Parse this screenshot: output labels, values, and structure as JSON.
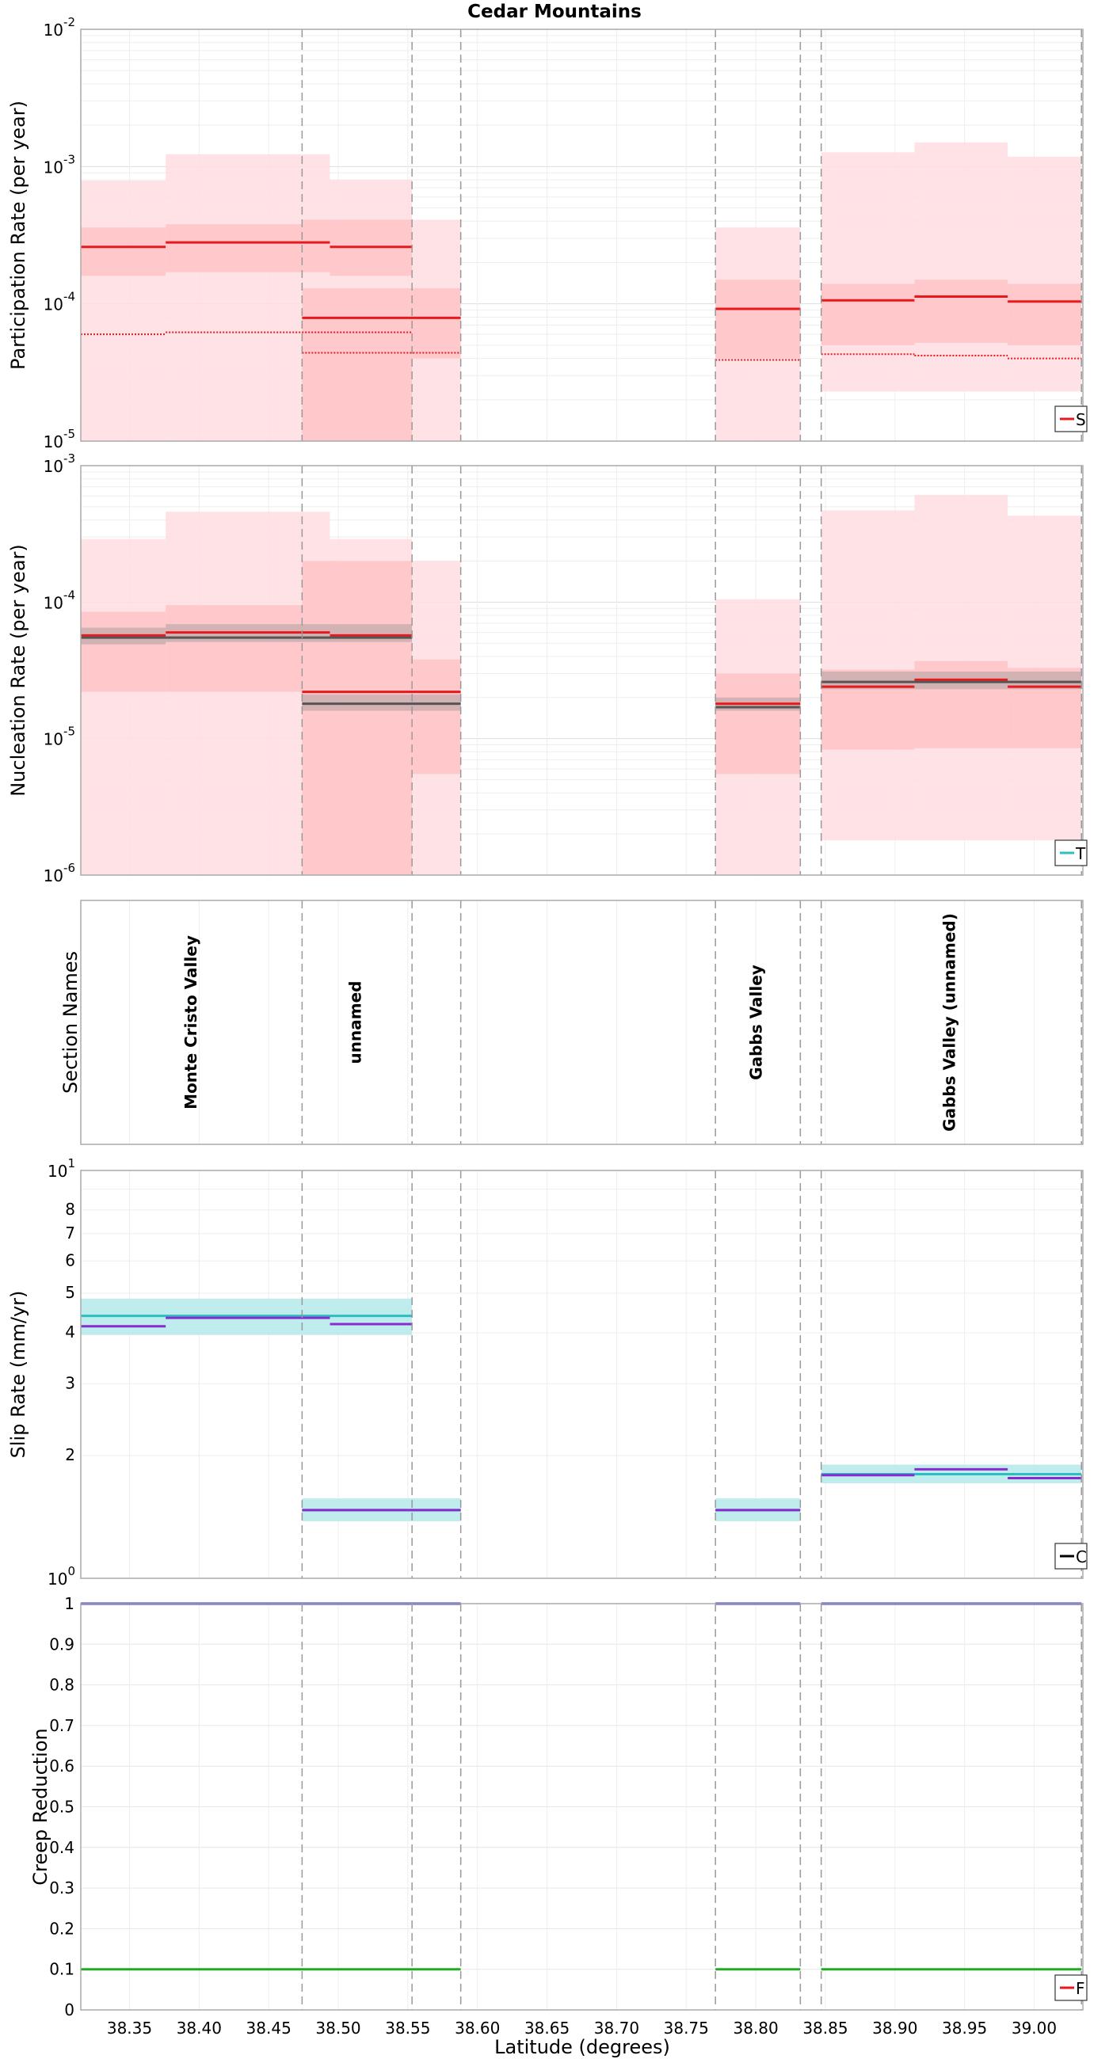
{
  "title": "Cedar Mountains",
  "x_axis": {
    "label": "Latitude (degrees)",
    "xlim": [
      38.315,
      39.035
    ],
    "ticks": [
      38.35,
      38.4,
      38.45,
      38.5,
      38.55,
      38.6,
      38.65,
      38.7,
      38.75,
      38.8,
      38.85,
      38.9,
      38.95,
      39.0
    ],
    "tick_labels": [
      "38.35",
      "38.40",
      "38.45",
      "38.50",
      "38.55",
      "38.60",
      "38.65",
      "38.70",
      "38.75",
      "38.80",
      "38.85",
      "38.90",
      "38.95",
      "39.00"
    ]
  },
  "section_boundaries": [
    38.474,
    38.553,
    38.588,
    38.771,
    38.832,
    38.847,
    39.034
  ],
  "colors": {
    "red": "#e8191d",
    "light_red": "#ffdde0",
    "mid_red": "#ffb5b8",
    "gray": "#555555",
    "cyan": "#2bbfbf",
    "light_cyan": "#b8eaea",
    "purple": "#8a2bd0",
    "blue": "#3333cc",
    "green": "#22aa22"
  },
  "chart_data": [
    {
      "type": "line",
      "scale": "log",
      "ylabel": "Participation Rate (per year)",
      "ylim": [
        1e-05,
        0.01
      ],
      "ytick_labels": [
        {
          "base": "10",
          "exp": "-5"
        },
        {
          "base": "10",
          "exp": "-4"
        },
        {
          "base": "10",
          "exp": "-3"
        },
        {
          "base": "10",
          "exp": "-2"
        }
      ],
      "legend_text": "S",
      "light_bands": [
        {
          "x": [
            38.315,
            38.376
          ],
          "range": [
            1e-05,
            0.00079
          ]
        },
        {
          "x": [
            38.376,
            38.474
          ],
          "range": [
            1e-05,
            0.00123
          ]
        },
        {
          "x": [
            38.474,
            38.494
          ],
          "range": [
            1e-05,
            0.00123
          ]
        },
        {
          "x": [
            38.494,
            38.553
          ],
          "range": [
            1e-05,
            0.0008
          ]
        },
        {
          "x": [
            38.553,
            38.588
          ],
          "range": [
            1e-05,
            0.00041
          ]
        },
        {
          "x": [
            38.771,
            38.832
          ],
          "range": [
            1e-05,
            0.00036
          ]
        },
        {
          "x": [
            38.847,
            38.914
          ],
          "range": [
            2.3e-05,
            0.00127
          ]
        },
        {
          "x": [
            38.914,
            38.981
          ],
          "range": [
            2.3e-05,
            0.0015
          ]
        },
        {
          "x": [
            38.981,
            39.034
          ],
          "range": [
            2.3e-05,
            0.00118
          ]
        }
      ],
      "mid_bands": [
        {
          "x": [
            38.315,
            38.376
          ],
          "range": [
            0.00016,
            0.00036
          ]
        },
        {
          "x": [
            38.376,
            38.474
          ],
          "range": [
            0.00017,
            0.00038
          ]
        },
        {
          "x": [
            38.474,
            38.494
          ],
          "range": [
            0.00017,
            0.00041
          ]
        },
        {
          "x": [
            38.494,
            38.553
          ],
          "range": [
            0.00016,
            0.00041
          ]
        },
        {
          "x": [
            38.474,
            38.553
          ],
          "range": [
            1e-05,
            0.00013
          ]
        },
        {
          "x": [
            38.553,
            38.588
          ],
          "range": [
            4e-05,
            0.00013
          ]
        },
        {
          "x": [
            38.771,
            38.832
          ],
          "range": [
            4e-05,
            0.00015
          ]
        },
        {
          "x": [
            38.847,
            38.914
          ],
          "range": [
            5e-05,
            0.00014
          ]
        },
        {
          "x": [
            38.914,
            38.981
          ],
          "range": [
            5.2e-05,
            0.00015
          ]
        },
        {
          "x": [
            38.981,
            39.034
          ],
          "range": [
            5e-05,
            0.00014
          ]
        }
      ],
      "series": [
        {
          "name": "mean",
          "style": "solid",
          "segments": [
            {
              "x": [
                38.315,
                38.376
              ],
              "y": 0.00026
            },
            {
              "x": [
                38.376,
                38.494
              ],
              "y": 0.00028
            },
            {
              "x": [
                38.494,
                38.553
              ],
              "y": 0.00026
            },
            {
              "x": [
                38.474,
                38.588
              ],
              "y": 7.9e-05
            },
            {
              "x": [
                38.771,
                38.832
              ],
              "y": 9.2e-05
            },
            {
              "x": [
                38.847,
                38.914
              ],
              "y": 0.000106
            },
            {
              "x": [
                38.914,
                38.981
              ],
              "y": 0.000113
            },
            {
              "x": [
                38.981,
                39.034
              ],
              "y": 0.000104
            }
          ]
        },
        {
          "name": "dotted",
          "style": "dotted",
          "segments": [
            {
              "x": [
                38.315,
                38.376
              ],
              "y": 6e-05
            },
            {
              "x": [
                38.376,
                38.553
              ],
              "y": 6.2e-05
            },
            {
              "x": [
                38.474,
                38.588
              ],
              "y": 4.4e-05
            },
            {
              "x": [
                38.771,
                38.832
              ],
              "y": 3.9e-05
            },
            {
              "x": [
                38.847,
                38.914
              ],
              "y": 4.3e-05
            },
            {
              "x": [
                38.914,
                38.981
              ],
              "y": 4.2e-05
            },
            {
              "x": [
                38.981,
                39.034
              ],
              "y": 4e-05
            }
          ]
        }
      ]
    },
    {
      "type": "line",
      "scale": "log",
      "ylabel": "Nucleation Rate (per year)",
      "ylim": [
        1e-06,
        0.001
      ],
      "ytick_labels": [
        {
          "base": "10",
          "exp": "-6"
        },
        {
          "base": "10",
          "exp": "-5"
        },
        {
          "base": "10",
          "exp": "-4"
        },
        {
          "base": "10",
          "exp": "-3"
        }
      ],
      "legend_text": "T",
      "light_bands": [
        {
          "x": [
            38.315,
            38.376
          ],
          "range": [
            1e-06,
            0.00029
          ]
        },
        {
          "x": [
            38.376,
            38.494
          ],
          "range": [
            1e-06,
            0.00046
          ]
        },
        {
          "x": [
            38.494,
            38.553
          ],
          "range": [
            1e-06,
            0.00029
          ]
        },
        {
          "x": [
            38.553,
            38.588
          ],
          "range": [
            1e-06,
            0.0002
          ]
        },
        {
          "x": [
            38.771,
            38.832
          ],
          "range": [
            1e-06,
            0.000105
          ]
        },
        {
          "x": [
            38.847,
            38.914
          ],
          "range": [
            1.8e-06,
            0.00047
          ]
        },
        {
          "x": [
            38.914,
            38.981
          ],
          "range": [
            1.8e-06,
            0.00061
          ]
        },
        {
          "x": [
            38.981,
            39.034
          ],
          "range": [
            1.8e-06,
            0.00043
          ]
        }
      ],
      "mid_bands": [
        {
          "x": [
            38.315,
            38.376
          ],
          "range": [
            2.2e-05,
            8.5e-05
          ]
        },
        {
          "x": [
            38.376,
            38.474
          ],
          "range": [
            2.2e-05,
            9.5e-05
          ]
        },
        {
          "x": [
            38.474,
            38.553
          ],
          "range": [
            1e-06,
            0.0002
          ]
        },
        {
          "x": [
            38.553,
            38.588
          ],
          "range": [
            5.5e-06,
            3.8e-05
          ]
        },
        {
          "x": [
            38.771,
            38.832
          ],
          "range": [
            5.5e-06,
            3e-05
          ]
        },
        {
          "x": [
            38.847,
            38.914
          ],
          "range": [
            8.3e-06,
            3.2e-05
          ]
        },
        {
          "x": [
            38.914,
            38.981
          ],
          "range": [
            8.5e-06,
            3.7e-05
          ]
        },
        {
          "x": [
            38.981,
            39.034
          ],
          "range": [
            8.5e-06,
            3.3e-05
          ]
        }
      ],
      "gray_bands": [
        {
          "x": [
            38.315,
            38.376
          ],
          "range": [
            4.9e-05,
            6.5e-05
          ]
        },
        {
          "x": [
            38.376,
            38.553
          ],
          "range": [
            5.1e-05,
            6.9e-05
          ]
        },
        {
          "x": [
            38.474,
            38.588
          ],
          "range": [
            1.6e-05,
            2.1e-05
          ]
        },
        {
          "x": [
            38.771,
            38.832
          ],
          "range": [
            1.6e-05,
            2e-05
          ]
        },
        {
          "x": [
            38.847,
            39.034
          ],
          "range": [
            2.3e-05,
            3.1e-05
          ]
        }
      ],
      "series": [
        {
          "name": "red-mean",
          "color": "red",
          "segments": [
            {
              "x": [
                38.315,
                38.376
              ],
              "y": 5.7e-05
            },
            {
              "x": [
                38.376,
                38.494
              ],
              "y": 6e-05
            },
            {
              "x": [
                38.494,
                38.553
              ],
              "y": 5.7e-05
            },
            {
              "x": [
                38.474,
                38.588
              ],
              "y": 2.2e-05
            },
            {
              "x": [
                38.771,
                38.832
              ],
              "y": 1.8e-05
            },
            {
              "x": [
                38.847,
                38.914
              ],
              "y": 2.4e-05
            },
            {
              "x": [
                38.914,
                38.981
              ],
              "y": 2.7e-05
            },
            {
              "x": [
                38.981,
                39.034
              ],
              "y": 2.4e-05
            }
          ]
        },
        {
          "name": "gray-mean",
          "color": "gray",
          "segments": [
            {
              "x": [
                38.315,
                38.553
              ],
              "y": 5.5e-05
            },
            {
              "x": [
                38.474,
                38.588
              ],
              "y": 1.8e-05
            },
            {
              "x": [
                38.771,
                38.832
              ],
              "y": 1.7e-05
            },
            {
              "x": [
                38.847,
                39.034
              ],
              "y": 2.6e-05
            }
          ]
        }
      ]
    },
    {
      "type": "table",
      "ylabel": "Section Names",
      "sections": [
        {
          "name": "Monte Cristo Valley",
          "x": 38.395
        },
        {
          "name": "unnamed",
          "x": 38.513
        },
        {
          "name": "Gabbs Valley",
          "x": 38.801
        },
        {
          "name": "Gabbs Valley (unnamed)",
          "x": 38.94
        }
      ]
    },
    {
      "type": "line",
      "scale": "log",
      "ylabel": "Slip Rate (mm/yr)",
      "ylim": [
        1,
        10
      ],
      "ytick_labels": [
        {
          "base": "10",
          "exp": "0"
        },
        {
          "base": "10",
          "exp": "1"
        }
      ],
      "minor_ticks": [
        2,
        3,
        4,
        5,
        6,
        7,
        8
      ],
      "legend_text": "C",
      "cyan_bands": [
        {
          "x": [
            38.315,
            38.553
          ],
          "range": [
            3.95,
            4.85
          ]
        },
        {
          "x": [
            38.474,
            38.588
          ],
          "range": [
            1.38,
            1.57
          ]
        },
        {
          "x": [
            38.771,
            38.832
          ],
          "range": [
            1.38,
            1.57
          ]
        },
        {
          "x": [
            38.847,
            39.034
          ],
          "range": [
            1.71,
            1.9
          ]
        }
      ],
      "series": [
        {
          "name": "target",
          "color": "cyan",
          "segments": [
            {
              "x": [
                38.315,
                38.553
              ],
              "y": 4.4
            },
            {
              "x": [
                38.474,
                38.588
              ],
              "y": 1.47
            },
            {
              "x": [
                38.771,
                38.832
              ],
              "y": 1.47
            },
            {
              "x": [
                38.847,
                39.034
              ],
              "y": 1.8
            }
          ]
        },
        {
          "name": "solution",
          "color": "purple",
          "segments": [
            {
              "x": [
                38.315,
                38.376
              ],
              "y": 4.15
            },
            {
              "x": [
                38.376,
                38.494
              ],
              "y": 4.35
            },
            {
              "x": [
                38.494,
                38.553
              ],
              "y": 4.2
            },
            {
              "x": [
                38.474,
                38.588
              ],
              "y": 1.47
            },
            {
              "x": [
                38.771,
                38.832
              ],
              "y": 1.47
            },
            {
              "x": [
                38.847,
                38.914
              ],
              "y": 1.79
            },
            {
              "x": [
                38.914,
                38.981
              ],
              "y": 1.85
            },
            {
              "x": [
                38.981,
                39.034
              ],
              "y": 1.76
            }
          ]
        }
      ]
    },
    {
      "type": "line",
      "scale": "linear",
      "ylabel": "Creep Reduction",
      "ylim": [
        0,
        1
      ],
      "yticks": [
        0,
        0.1,
        0.2,
        0.3,
        0.4,
        0.5,
        0.6,
        0.7,
        0.8,
        0.9,
        1
      ],
      "ytick_labels": [
        "0",
        "0.1",
        "0.2",
        "0.3",
        "0.4",
        "0.5",
        "0.6",
        "0.7",
        "0.8",
        "0.9",
        "1"
      ],
      "legend_text": "F",
      "series": [
        {
          "name": "coupling",
          "color": "blue",
          "segments": [
            {
              "x": [
                38.315,
                38.588
              ],
              "y": 1
            },
            {
              "x": [
                38.771,
                38.832
              ],
              "y": 1
            },
            {
              "x": [
                38.847,
                39.034
              ],
              "y": 1
            }
          ]
        },
        {
          "name": "creep",
          "color": "green",
          "segments": [
            {
              "x": [
                38.315,
                38.588
              ],
              "y": 0.1
            },
            {
              "x": [
                38.771,
                38.832
              ],
              "y": 0.1
            },
            {
              "x": [
                38.847,
                39.034
              ],
              "y": 0.1
            }
          ]
        }
      ]
    }
  ]
}
